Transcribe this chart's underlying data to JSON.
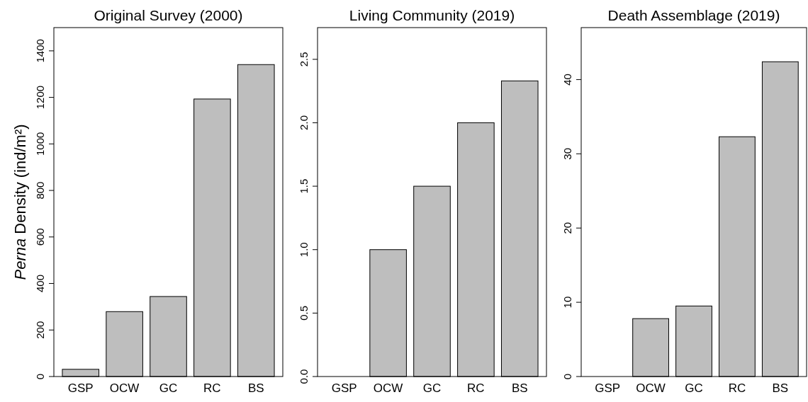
{
  "chart_data": [
    {
      "type": "bar",
      "title": "Original Survey (2000)",
      "ylabel": "Perna Density (ind/m²)",
      "categories": [
        "GSP",
        "OCW",
        "GC",
        "RC",
        "BS"
      ],
      "values": [
        31,
        279,
        344,
        1193,
        1341
      ],
      "color": "#bebebe",
      "ylim": [
        0,
        1500
      ],
      "yticks": [
        0,
        200,
        400,
        600,
        800,
        1000,
        1200,
        1400
      ],
      "grid": false
    },
    {
      "type": "bar",
      "title": "Living Community (2019)",
      "categories": [
        "GSP",
        "OCW",
        "GC",
        "RC",
        "BS"
      ],
      "values": [
        0,
        1.0,
        1.5,
        2.0,
        2.33
      ],
      "color": "#bebebe",
      "ylim": [
        0,
        2.75
      ],
      "yticks": [
        {
          "value": 0,
          "label": "0.0"
        },
        {
          "value": 0.5,
          "label": "0.5"
        },
        {
          "value": 1,
          "label": "1.0"
        },
        {
          "value": 1.5,
          "label": "1.5"
        },
        {
          "value": 2,
          "label": "2.0"
        },
        {
          "value": 2.5,
          "label": "2.5"
        }
      ],
      "grid": false
    },
    {
      "type": "bar",
      "title": "Death Assemblage (2019)",
      "categories": [
        "GSP",
        "OCW",
        "GC",
        "RC",
        "BS"
      ],
      "values": [
        0,
        7.8,
        9.5,
        32.3,
        42.4
      ],
      "color": "#bebebe",
      "ylim": [
        0,
        47
      ],
      "yticks": [
        0,
        10,
        20,
        30,
        40
      ],
      "grid": false
    }
  ]
}
